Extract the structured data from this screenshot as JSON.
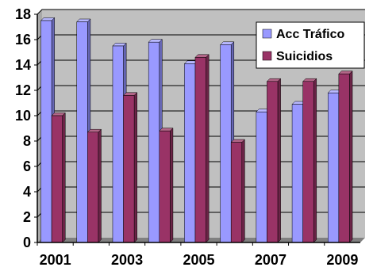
{
  "chart_data": {
    "type": "bar",
    "categories": [
      "2001",
      "2002",
      "2003",
      "2004",
      "2005",
      "2006",
      "2007",
      "2008",
      "2009"
    ],
    "x_tick_labels": [
      "2001",
      "",
      "2003",
      "",
      "2005",
      "",
      "2007",
      "",
      "2009"
    ],
    "series": [
      {
        "name": "Acc Tráfico",
        "values": [
          17.5,
          17.4,
          15.5,
          15.8,
          14.1,
          15.6,
          10.3,
          10.9,
          11.8
        ]
      },
      {
        "name": "Suicidios",
        "values": [
          10.0,
          8.7,
          11.6,
          8.8,
          14.6,
          7.9,
          12.7,
          12.7,
          13.3
        ]
      }
    ],
    "y_ticks": [
      "0",
      "2",
      "4",
      "6",
      "8",
      "10",
      "12",
      "14",
      "16",
      "18"
    ],
    "ylim": [
      0,
      18
    ],
    "grid": true,
    "legend_position": "top-right",
    "bar_style": "3d",
    "colors": {
      "series_front": [
        "#9999ff",
        "#993366"
      ],
      "series_side": [
        "#6666b3",
        "#6b2447"
      ],
      "series_top": [
        "#b8b8ff",
        "#b36688"
      ],
      "plot_wall": "#c0c0c0",
      "plot_floor": "#808080",
      "gridline": "#000000"
    }
  }
}
